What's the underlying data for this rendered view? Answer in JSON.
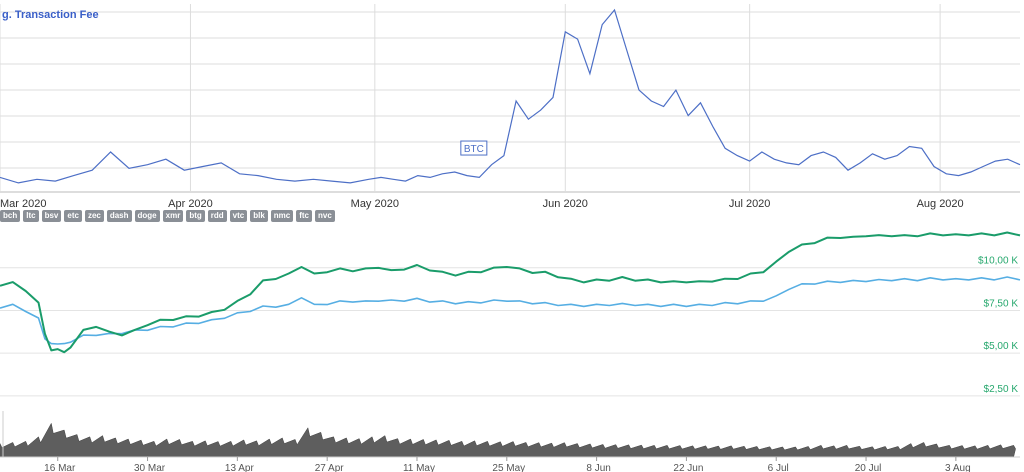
{
  "coin_pills": [
    "bch",
    "ltc",
    "bsv",
    "etc",
    "zec",
    "dash",
    "doge",
    "xmr",
    "btg",
    "rdd",
    "vtc",
    "blk",
    "nmc",
    "ftc",
    "nvc"
  ],
  "chart_data": [
    {
      "type": "line",
      "title": "g. Transaction Fee",
      "series_label": "BTC",
      "x_tick_labels": [
        "Mar 2020",
        "Apr 2020",
        "May 2020",
        "Jun 2020",
        "Jul 2020",
        "Aug 2020"
      ],
      "x_tick_positions": [
        0,
        31,
        61,
        92,
        122,
        153
      ],
      "x_range": [
        0,
        166
      ],
      "ylim": [
        0,
        100
      ],
      "grid": true,
      "colors": {
        "line": "#4d6fc6",
        "grid": "#dddddd",
        "title": "#3a5fc8"
      },
      "series": [
        {
          "name": "BTC",
          "x": [
            0,
            3,
            6,
            9,
            12,
            15,
            18,
            21,
            24,
            27,
            30,
            33,
            36,
            39,
            42,
            45,
            48,
            51,
            54,
            57,
            60,
            62,
            64,
            66,
            68,
            70,
            72,
            74,
            76,
            78,
            80,
            82,
            84,
            86,
            88,
            90,
            92,
            94,
            96,
            98,
            100,
            102,
            104,
            106,
            108,
            110,
            112,
            114,
            116,
            118,
            120,
            122,
            124,
            126,
            128,
            130,
            132,
            134,
            136,
            138,
            140,
            142,
            144,
            146,
            148,
            150,
            152,
            154,
            156,
            158,
            160,
            162,
            164,
            166
          ],
          "values": [
            8,
            5,
            7,
            6,
            9,
            12,
            22,
            13,
            15,
            18,
            12,
            14,
            16,
            10,
            9,
            7,
            6,
            7,
            6,
            5,
            7,
            8,
            7,
            6,
            9,
            8,
            10,
            11,
            9,
            8,
            15,
            20,
            50,
            40,
            45,
            52,
            88,
            84,
            65,
            92,
            100,
            78,
            56,
            50,
            47,
            56,
            42,
            49,
            36,
            24,
            20,
            17,
            22,
            18,
            16,
            15,
            20,
            22,
            19,
            12,
            16,
            21,
            18,
            20,
            25,
            24,
            14,
            10,
            9,
            11,
            14,
            17,
            18,
            15
          ]
        }
      ]
    },
    {
      "type": "line",
      "x_tick_labels": [
        "16 Mar",
        "30 Mar",
        "13 Apr",
        "27 Apr",
        "11 May",
        "25 May",
        "8 Jun",
        "22 Jun",
        "6 Jul",
        "20 Jul",
        "3 Aug"
      ],
      "x_tick_positions": [
        16,
        30,
        44,
        58,
        72,
        86,
        100,
        114,
        128,
        142,
        156
      ],
      "x_range": [
        7,
        166
      ],
      "y_tick_labels": [
        "$2,50 K",
        "$5,00 K",
        "$7,50 K",
        "$10,00 K"
      ],
      "y_tick_values": [
        2500,
        5000,
        7500,
        10000
      ],
      "ylim": [
        1500,
        12500
      ],
      "grid": true,
      "colors": {
        "primary": "#1a9c6a",
        "secondary": "#56aee3",
        "volume": "#5e5e5e",
        "tick": "#27a86e"
      },
      "series": [
        {
          "name": "",
          "x": [
            7,
            9,
            11,
            13,
            14,
            15,
            16,
            17,
            18,
            20,
            22,
            24,
            26,
            28,
            30,
            32,
            34,
            36,
            38,
            40,
            42,
            44,
            46,
            48,
            50,
            52,
            54,
            56,
            58,
            60,
            62,
            64,
            66,
            68,
            70,
            72,
            74,
            76,
            78,
            80,
            82,
            84,
            86,
            88,
            90,
            92,
            94,
            96,
            98,
            100,
            102,
            104,
            106,
            108,
            110,
            112,
            114,
            116,
            118,
            120,
            122,
            124,
            126,
            128,
            130,
            132,
            134,
            136,
            138,
            140,
            142,
            144,
            146,
            148,
            150,
            152,
            154,
            156,
            158,
            160,
            162,
            164,
            166
          ],
          "values": [
            9000,
            9100,
            8700,
            7900,
            6200,
            5100,
            5300,
            5000,
            5400,
            6300,
            6600,
            6200,
            6100,
            6300,
            6700,
            6900,
            7000,
            7100,
            7200,
            7350,
            7600,
            8000,
            8500,
            9200,
            9400,
            9600,
            10100,
            9600,
            9800,
            9900,
            9850,
            9900,
            10050,
            9800,
            9950,
            10100,
            9900,
            9700,
            9600,
            9700,
            9800,
            9950,
            10100,
            9900,
            9750,
            9700,
            9500,
            9300,
            9200,
            9250,
            9300,
            9400,
            9300,
            9250,
            9200,
            9150,
            9200,
            9150,
            9250,
            9300,
            9400,
            9600,
            9800,
            10300,
            11000,
            11300,
            11500,
            11700,
            11800,
            11750,
            11900,
            11850,
            11900,
            11850,
            11900,
            11950,
            11950,
            11900,
            11950,
            11950,
            11950,
            12000,
            11950
          ]
        },
        {
          "name": "",
          "x": [
            7,
            9,
            11,
            13,
            14,
            15,
            16,
            17,
            18,
            20,
            22,
            24,
            26,
            28,
            30,
            32,
            34,
            36,
            38,
            40,
            42,
            44,
            46,
            48,
            50,
            52,
            54,
            56,
            58,
            60,
            62,
            64,
            66,
            68,
            70,
            72,
            74,
            76,
            78,
            80,
            82,
            84,
            86,
            88,
            90,
            92,
            94,
            96,
            98,
            100,
            102,
            104,
            106,
            108,
            110,
            112,
            114,
            116,
            118,
            120,
            122,
            124,
            126,
            128,
            130,
            132,
            134,
            136,
            138,
            140,
            142,
            144,
            146,
            148,
            150,
            152,
            154,
            156,
            158,
            160,
            162,
            164,
            166
          ],
          "values": [
            7700,
            7800,
            7500,
            7000,
            5900,
            5500,
            5600,
            5500,
            5700,
            6000,
            6100,
            6100,
            6200,
            6300,
            6400,
            6500,
            6600,
            6700,
            6800,
            6900,
            7100,
            7300,
            7500,
            7700,
            7750,
            7800,
            8300,
            7800,
            7900,
            8000,
            8050,
            8000,
            8100,
            8050,
            8100,
            8150,
            8050,
            8000,
            7950,
            7950,
            8000,
            8050,
            8100,
            8000,
            7950,
            7900,
            7850,
            7800,
            7800,
            7800,
            7850,
            7850,
            7850,
            7800,
            7800,
            7800,
            7800,
            7800,
            7850,
            7900,
            7950,
            8000,
            8100,
            8300,
            8800,
            9000,
            9100,
            9150,
            9200,
            9200,
            9250,
            9250,
            9300,
            9300,
            9300,
            9350,
            9350,
            9300,
            9350,
            9350,
            9350,
            9400,
            9350
          ]
        }
      ],
      "volume_x": [
        7,
        9,
        11,
        13,
        15,
        17,
        19,
        21,
        23,
        25,
        27,
        29,
        31,
        33,
        35,
        37,
        39,
        41,
        43,
        45,
        47,
        49,
        51,
        53,
        55,
        57,
        59,
        61,
        63,
        65,
        67,
        69,
        71,
        73,
        75,
        77,
        79,
        81,
        83,
        85,
        87,
        89,
        91,
        93,
        95,
        97,
        99,
        101,
        103,
        105,
        107,
        109,
        111,
        113,
        115,
        117,
        119,
        121,
        123,
        125,
        127,
        129,
        131,
        133,
        135,
        137,
        139,
        141,
        143,
        145,
        147,
        149,
        151,
        153,
        155,
        157,
        159,
        161,
        163,
        165
      ],
      "volume_values": [
        600,
        650,
        700,
        900,
        1500,
        1200,
        1000,
        900,
        950,
        850,
        800,
        750,
        700,
        800,
        780,
        700,
        720,
        690,
        700,
        760,
        720,
        800,
        850,
        780,
        1300,
        1100,
        900,
        850,
        820,
        900,
        950,
        820,
        800,
        780,
        760,
        740,
        700,
        720,
        700,
        680,
        690,
        650,
        640,
        620,
        640,
        600,
        580,
        560,
        550,
        540,
        530,
        520,
        520,
        510,
        500,
        500,
        490,
        500,
        480,
        470,
        460,
        450,
        450,
        470,
        520,
        500,
        520,
        480,
        460,
        470,
        470,
        600,
        650,
        580,
        520,
        510,
        500,
        520,
        540,
        520
      ]
    }
  ]
}
